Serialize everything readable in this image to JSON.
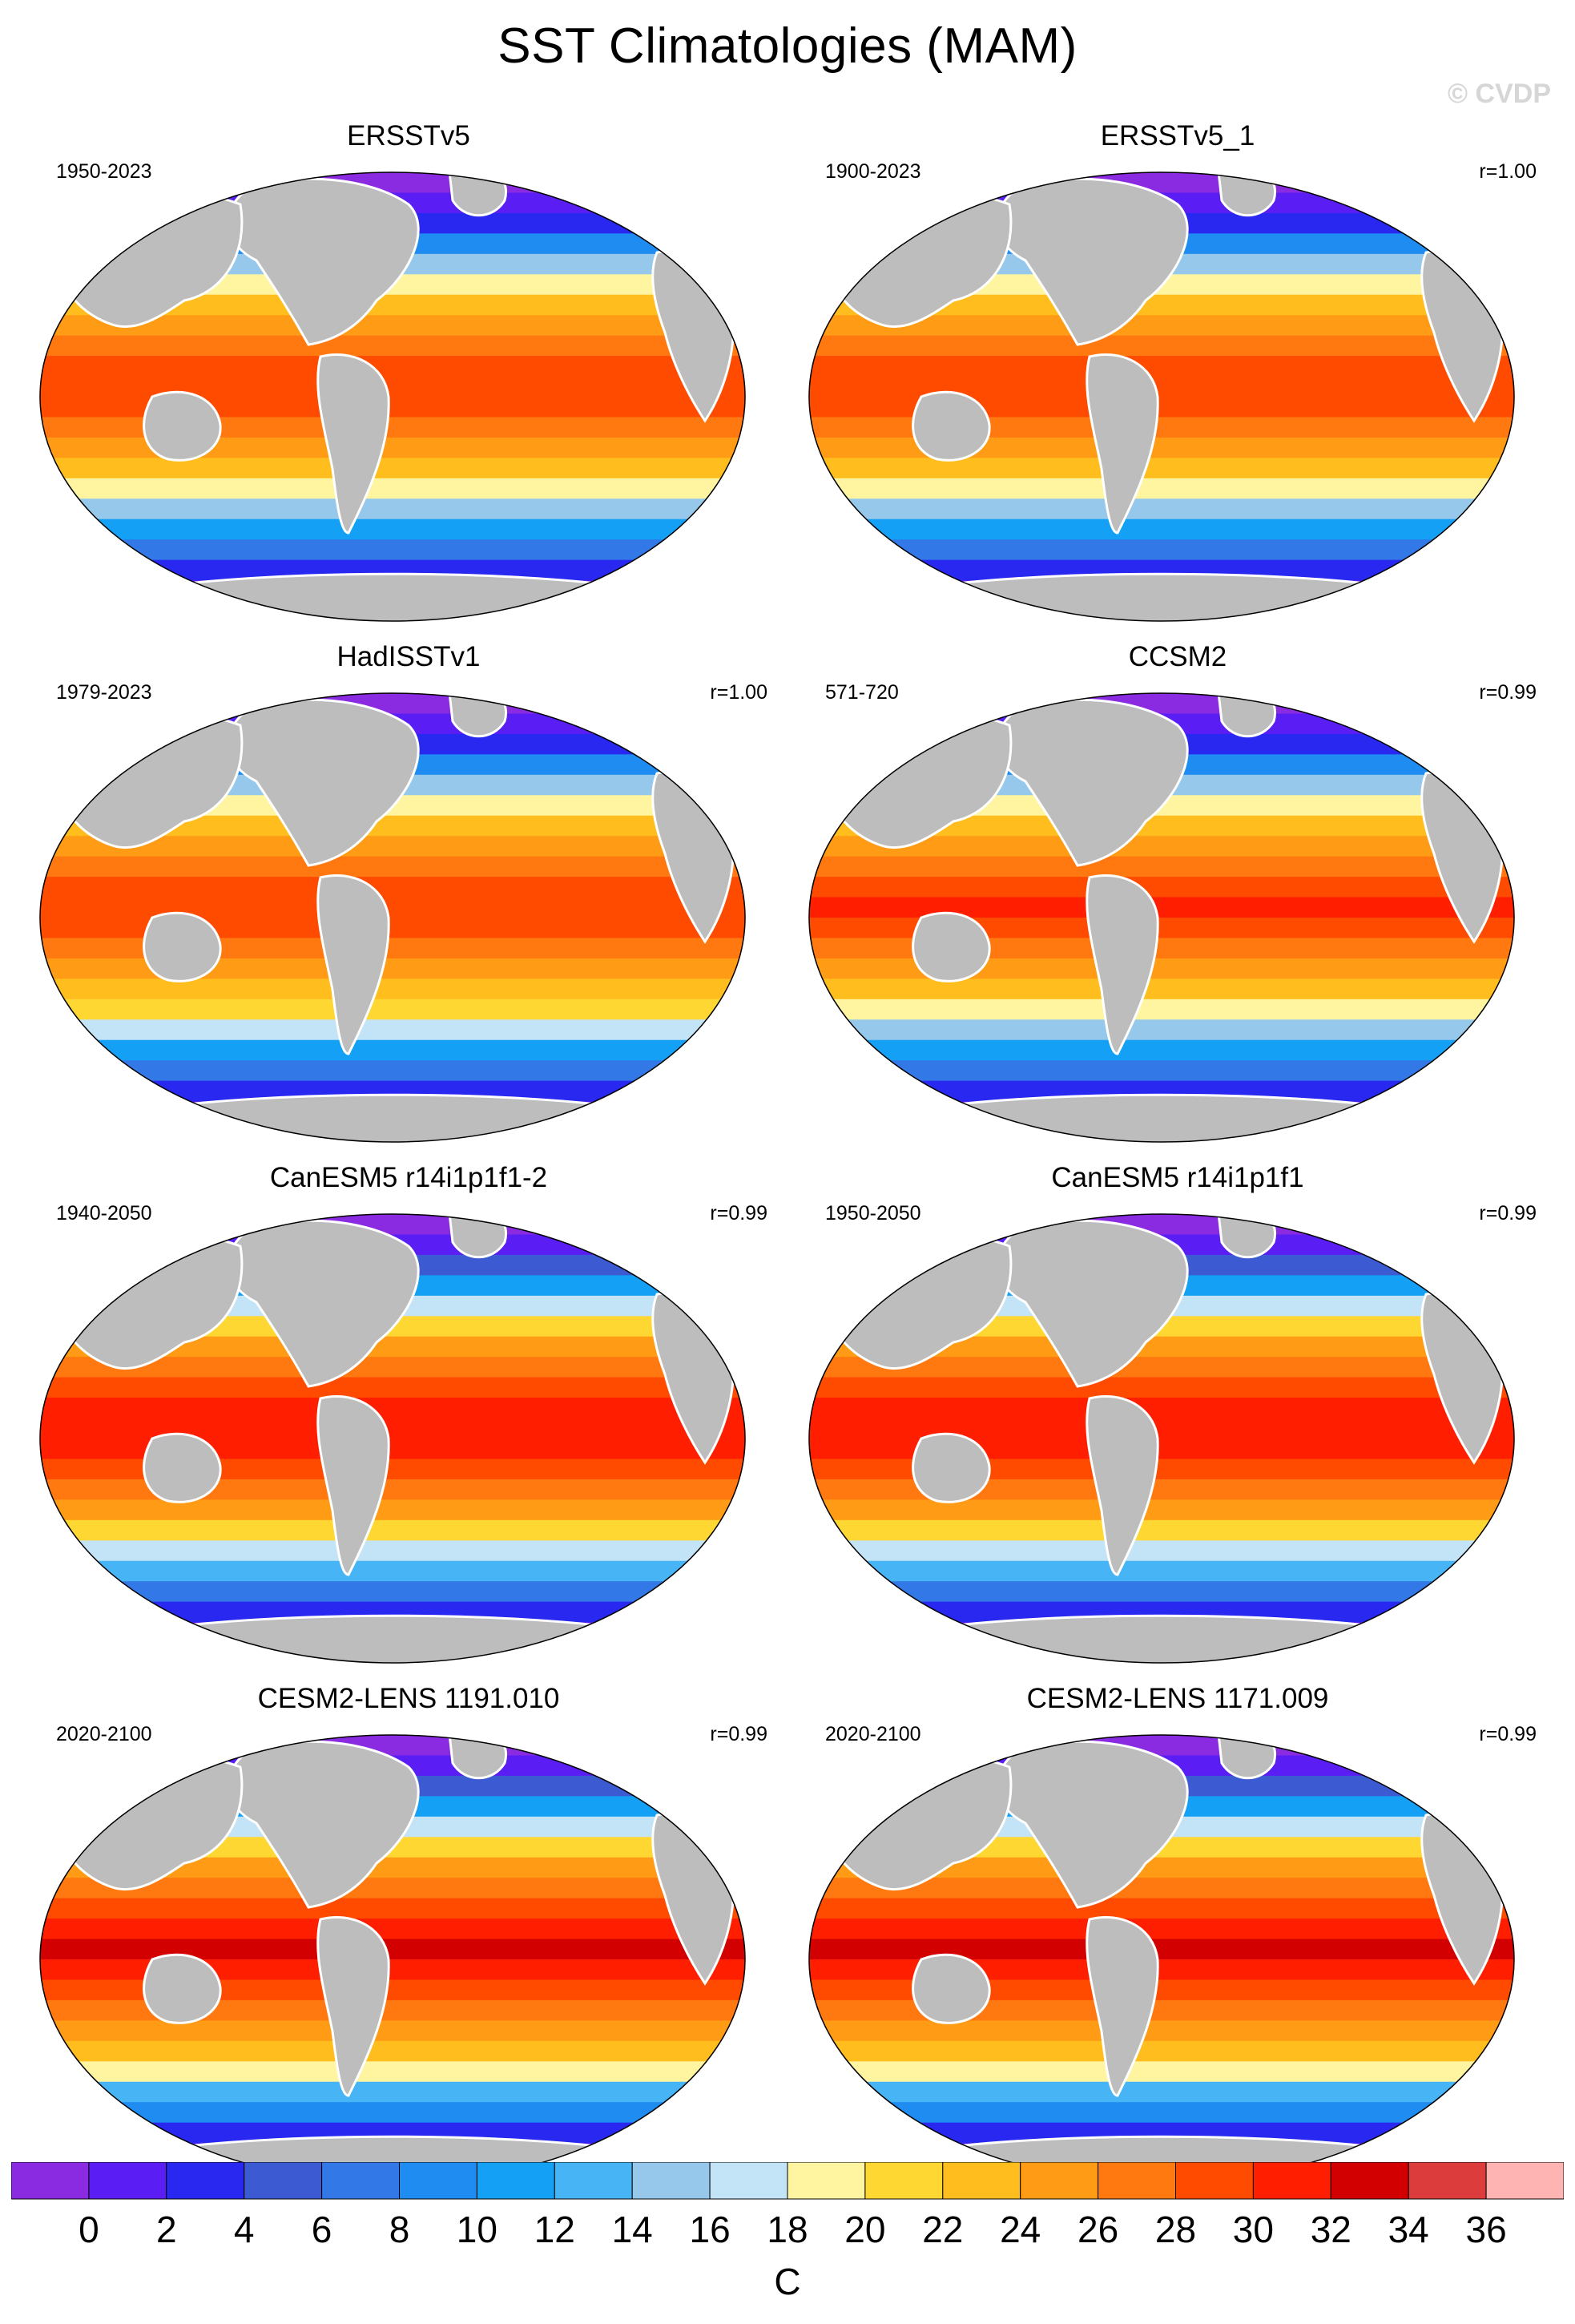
{
  "title": "SST Climatologies (MAM)",
  "watermark": "© CVDP",
  "panels": [
    {
      "title": "ERSSTv5",
      "years": "1950-2023",
      "corr": "",
      "variant": 0
    },
    {
      "title": "ERSSTv5_1",
      "years": "1900-2023",
      "corr": "r=1.00",
      "variant": 0
    },
    {
      "title": "HadISSTv1",
      "years": "1979-2023",
      "corr": "r=1.00",
      "variant": 1
    },
    {
      "title": "CCSM2",
      "years": "571-720",
      "corr": "r=0.99",
      "variant": 2
    },
    {
      "title": "CanESM5 r14i1p1f1-2",
      "years": "1940-2050",
      "corr": "r=0.99",
      "variant": 3
    },
    {
      "title": "CanESM5 r14i1p1f1",
      "years": "1950-2050",
      "corr": "r=0.99",
      "variant": 3
    },
    {
      "title": "CESM2-LENS 1191.010",
      "years": "2020-2100",
      "corr": "r=0.99",
      "variant": 4
    },
    {
      "title": "CESM2-LENS 1171.009",
      "years": "2020-2100",
      "corr": "r=0.99",
      "variant": 4
    }
  ],
  "colorbar": {
    "units": "C",
    "labels": [
      "0",
      "2",
      "4",
      "6",
      "8",
      "10",
      "12",
      "14",
      "16",
      "18",
      "20",
      "22",
      "24",
      "26",
      "28",
      "30",
      "32",
      "34",
      "36"
    ],
    "colors": [
      "#8a2be2",
      "#5a1ef5",
      "#2828f0",
      "#3c5ad2",
      "#3278e6",
      "#1e8cf0",
      "#14a0f5",
      "#46b4f5",
      "#96c8eb",
      "#c3e3f7",
      "#fff5a0",
      "#ffd732",
      "#ffbe1e",
      "#ff9b14",
      "#ff7810",
      "#ff4b00",
      "#ff1e00",
      "#d20000",
      "#dc3c3c",
      "#ffb4b4"
    ]
  }
}
